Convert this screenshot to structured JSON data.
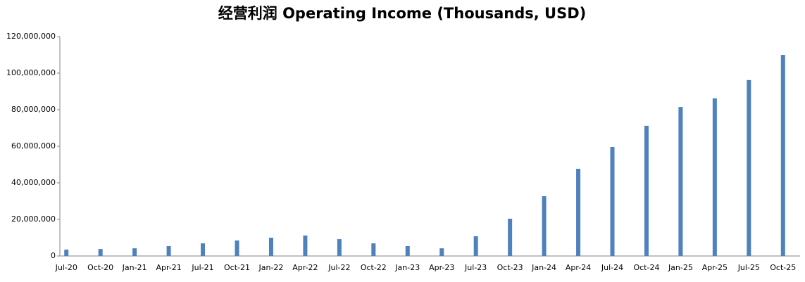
{
  "chart_data": {
    "type": "bar",
    "title": "经营利润 Operating Income (Thousands, USD)",
    "categories": [
      "Jul-20",
      "Oct-20",
      "Jan-21",
      "Apr-21",
      "Jul-21",
      "Oct-21",
      "Jan-22",
      "Apr-22",
      "Jul-22",
      "Oct-22",
      "Jan-23",
      "Apr-23",
      "Jul-23",
      "Oct-23",
      "Jan-24",
      "Apr-24",
      "Jul-24",
      "Oct-24",
      "Jan-25",
      "Apr-25",
      "Jul-25",
      "Oct-25"
    ],
    "values": [
      3500000,
      3800000,
      4200000,
      5400000,
      6900000,
      8500000,
      10000000,
      11200000,
      9200000,
      6900000,
      5400000,
      4200000,
      10800000,
      20400000,
      32700000,
      47700000,
      59600000,
      71200000,
      81500000,
      86200000,
      96200000,
      110000000
    ],
    "color": "#4f81bd",
    "ylim": [
      0,
      120000000
    ],
    "yticks": [
      0,
      {
        "value": 20000000,
        "label": "20,000,000"
      },
      {
        "value": 40000000,
        "label": "40,000,000"
      },
      {
        "value": 60000000,
        "label": "60,000,000"
      },
      {
        "value": 80000000,
        "label": "80,000,000"
      },
      {
        "value": 100000000,
        "label": "100,000,000"
      },
      {
        "value": 120000000,
        "label": "120,000,000"
      }
    ],
    "grid": false
  }
}
